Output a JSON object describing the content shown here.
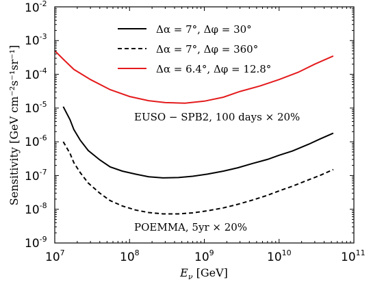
{
  "chart_data": {
    "type": "line",
    "xlabel_main": "E",
    "xlabel_sub": "ν",
    "xlabel_unit": " [GeV]",
    "ylabel": "Sensitivity [GeV cm⁻²s⁻¹sr⁻¹]",
    "x_scale": "log",
    "y_scale": "log",
    "xlim": [
      10000000.0,
      100000000000.0
    ],
    "ylim": [
      1e-09,
      0.01
    ],
    "grid": false,
    "legend_position": "top-center",
    "x_ticks": [
      {
        "base": "10",
        "exp": "7"
      },
      {
        "base": "10",
        "exp": "8"
      },
      {
        "base": "10",
        "exp": "9"
      },
      {
        "base": "10",
        "exp": "10"
      },
      {
        "base": "10",
        "exp": "11"
      }
    ],
    "y_ticks": [
      {
        "base": "10",
        "exp": "-9"
      },
      {
        "base": "10",
        "exp": "-8"
      },
      {
        "base": "10",
        "exp": "-7"
      },
      {
        "base": "10",
        "exp": "-6"
      },
      {
        "base": "10",
        "exp": "-5"
      },
      {
        "base": "10",
        "exp": "-4"
      },
      {
        "base": "10",
        "exp": "-3"
      },
      {
        "base": "10",
        "exp": "-2"
      }
    ],
    "series": [
      {
        "name": "Δα = 7°,  Δφ = 30°",
        "color": "#000000",
        "style": "solid",
        "x": [
          13000000.0,
          16000000.0,
          18000000.0,
          22000000.0,
          28000000.0,
          40000000.0,
          55000000.0,
          80000000.0,
          120000000.0,
          180000000.0,
          280000000.0,
          450000000.0,
          700000000.0,
          1100000000.0,
          1800000000.0,
          2800000000.0,
          4500000000.0,
          7000000000.0,
          10000000000.0,
          15000000000.0,
          25000000000.0,
          35000000000.0,
          53000000000.0
        ],
        "y": [
          1.1e-05,
          4.5e-06,
          2.3e-06,
          1.1e-06,
          5.5e-07,
          2.9e-07,
          1.8e-07,
          1.35e-07,
          1.1e-07,
          9.2e-08,
          8.5e-08,
          8.7e-08,
          9.5e-08,
          1.1e-07,
          1.35e-07,
          1.7e-07,
          2.3e-07,
          3e-07,
          4e-07,
          5.3e-07,
          8.5e-07,
          1.2e-06,
          1.8e-06
        ]
      },
      {
        "name": "Δα = 7°,  Δφ = 360°",
        "color": "#000000",
        "style": "dashed",
        "x": [
          13000000.0,
          16000000.0,
          18000000.0,
          22000000.0,
          28000000.0,
          40000000.0,
          55000000.0,
          80000000.0,
          120000000.0,
          180000000.0,
          280000000.0,
          450000000.0,
          700000000.0,
          1100000000.0,
          1800000000.0,
          2800000000.0,
          4500000000.0,
          7000000000.0,
          10000000000.0,
          15000000000.0,
          25000000000.0,
          35000000000.0,
          53000000000.0
        ],
        "y": [
          1e-06,
          4.5e-07,
          2.4e-07,
          1.2e-07,
          6e-08,
          3e-08,
          1.8e-08,
          1.25e-08,
          9.5e-09,
          8e-09,
          7.3e-09,
          7.3e-09,
          7.8e-09,
          9e-09,
          1.1e-08,
          1.4e-08,
          1.9e-08,
          2.6e-08,
          3.5e-08,
          4.8e-08,
          7.5e-08,
          1e-07,
          1.5e-07
        ]
      },
      {
        "name": "Δα = 6.4°,  Δφ = 12.8°",
        "color": "#e41a1c",
        "style": "solid",
        "x": [
          10000000.0,
          13000000.0,
          18000000.0,
          30000000.0,
          55000000.0,
          100000000.0,
          180000000.0,
          300000000.0,
          550000000.0,
          1000000000.0,
          1800000000.0,
          3000000000.0,
          5500000000.0,
          10000000000.0,
          18000000000.0,
          30000000000.0,
          53000000000.0
        ],
        "y": [
          0.0005,
          0.00028,
          0.00014,
          7e-05,
          3.5e-05,
          2.2e-05,
          1.65e-05,
          1.45e-05,
          1.4e-05,
          1.6e-05,
          2.1e-05,
          3.1e-05,
          4.5e-05,
          7e-05,
          0.000115,
          0.0002,
          0.00035
        ]
      }
    ],
    "annotations": [
      {
        "text": "EUSO − SPB2,  100 days × 20%"
      },
      {
        "text": "POEMMA,  5yr × 20%"
      }
    ]
  }
}
